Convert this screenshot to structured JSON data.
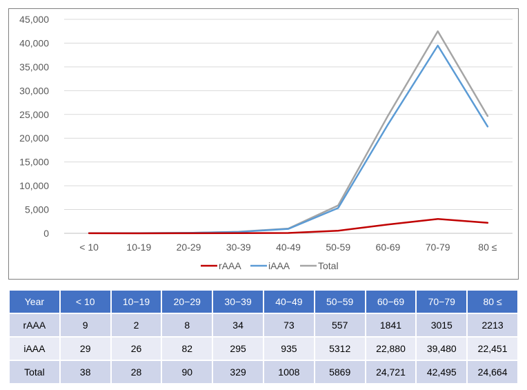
{
  "chart_data": {
    "type": "line",
    "categories": [
      "< 10",
      "10-19",
      "20-29",
      "30-39",
      "40-49",
      "50-59",
      "60-69",
      "70-79",
      "80 ≤"
    ],
    "series": [
      {
        "name": "rAAA",
        "color": "#c00000",
        "values": [
          9,
          2,
          8,
          34,
          73,
          557,
          1841,
          3015,
          2213
        ]
      },
      {
        "name": "iAAA",
        "color": "#5b9bd5",
        "values": [
          29,
          26,
          82,
          295,
          935,
          5312,
          22880,
          39480,
          22451
        ]
      },
      {
        "name": "Total",
        "color": "#a5a5a5",
        "values": [
          38,
          28,
          90,
          329,
          1008,
          5869,
          24721,
          42495,
          24664
        ]
      }
    ],
    "ylim": [
      0,
      45000
    ],
    "yticks": [
      0,
      5000,
      10000,
      15000,
      20000,
      25000,
      30000,
      35000,
      40000,
      45000
    ],
    "ytick_labels": [
      "0",
      "5,000",
      "10,000",
      "15,000",
      "20,000",
      "25,000",
      "30,000",
      "35,000",
      "40,000",
      "45,000"
    ],
    "grid": true,
    "legend": "bottom"
  },
  "table": {
    "header": [
      "Year",
      "< 10",
      "10−19",
      "20−29",
      "30−39",
      "40−49",
      "50−59",
      "60−69",
      "70−79",
      "80 ≤"
    ],
    "rows": [
      [
        "rAAA",
        "9",
        "2",
        "8",
        "34",
        "73",
        "557",
        "1841",
        "3015",
        "2213"
      ],
      [
        "iAAA",
        "29",
        "26",
        "82",
        "295",
        "935",
        "5312",
        "22,880",
        "39,480",
        "22,451"
      ],
      [
        "Total",
        "38",
        "28",
        "90",
        "329",
        "1008",
        "5869",
        "24,721",
        "42,495",
        "24,664"
      ]
    ]
  }
}
